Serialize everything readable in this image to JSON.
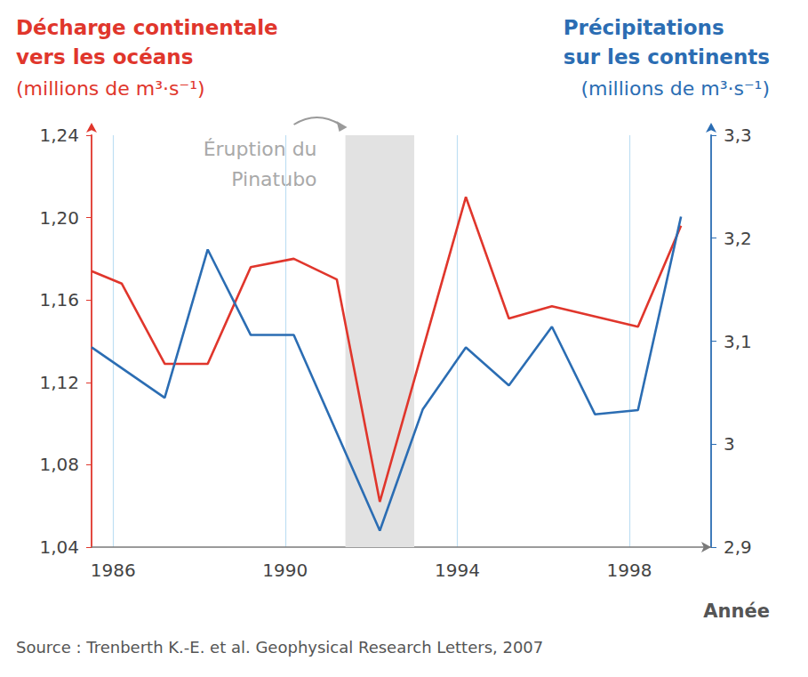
{
  "chart_data": {
    "type": "line",
    "ylabel": "Décharge continentale\nvers les océans",
    "yunit": "(millions de m³·s⁻¹)",
    "y2label": "Précipitations\nsur les continents",
    "y2unit": "(millions de m³·s⁻¹)",
    "xlabel": "Année",
    "source": "Source : Trenberth K.-E. et al. Geophysical Research Letters, 2007",
    "x": [
      1985.5,
      1986.2,
      1987.2,
      1988.2,
      1989.2,
      1990.2,
      1991.2,
      1992.2,
      1993.2,
      1994.2,
      1995.2,
      1996.2,
      1997.2,
      1998.2,
      1999.2
    ],
    "series": [
      {
        "color": "#e0362c",
        "values": [
          1.174,
          1.168,
          1.129,
          1.129,
          1.176,
          1.18,
          1.17,
          1.062,
          null,
          1.21,
          1.151,
          1.157,
          null,
          1.147,
          1.196
        ]
      },
      {
        "color": "#2b6db3",
        "axis": "y2",
        "values": [
          3.094,
          null,
          3.045,
          3.189,
          3.106,
          3.106,
          null,
          2.916,
          3.034,
          3.094,
          3.057,
          3.114,
          3.029,
          3.033,
          3.221
        ]
      }
    ],
    "xlim": [
      1985.5,
      1999.9
    ],
    "xticks": [
      1986,
      1990,
      1994,
      1998
    ],
    "ylim": [
      1.04,
      1.24
    ],
    "yticks": [
      {
        "value": 1.04,
        "label": "1,04"
      },
      {
        "value": 1.08,
        "label": "1,08"
      },
      {
        "value": 1.12,
        "label": "1,12"
      },
      {
        "value": 1.16,
        "label": "1,16"
      },
      {
        "value": 1.2,
        "label": "1,20"
      },
      {
        "value": 1.24,
        "label": "1,24"
      }
    ],
    "y2lim": [
      2.9,
      3.3
    ],
    "y2ticks": [
      {
        "value": 2.9,
        "label": "2,9"
      },
      3,
      {
        "value": 3.1,
        "label": "3,1"
      },
      {
        "value": 3.2,
        "label": "3,2"
      },
      {
        "value": 3.3,
        "label": "3,3"
      }
    ],
    "grid": true,
    "annotations": [
      {
        "text": "Éruption du\nPinatubo",
        "x_range": [
          1991.4,
          1993.0
        ]
      }
    ]
  }
}
